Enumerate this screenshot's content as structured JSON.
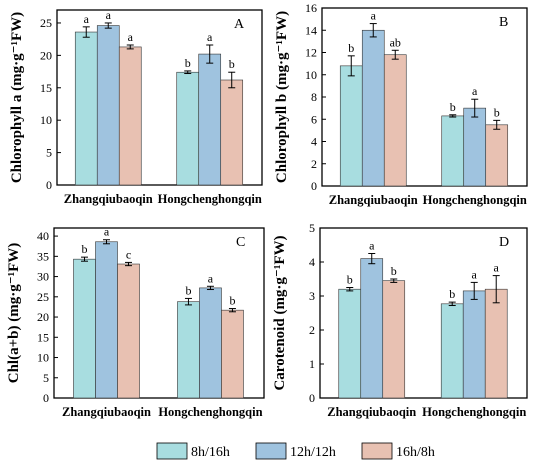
{
  "colors": {
    "series": [
      "#A8DDE0",
      "#9FC3DF",
      "#E8C1B2"
    ],
    "axis": "#000000",
    "errorbar": "#000000"
  },
  "legend": [
    "8h/16h",
    "12h/12h",
    "16h/8h"
  ],
  "chart_data": [
    {
      "type": "bar",
      "panel_label": "A",
      "ylabel": "Chlorophyll a (mg·g⁻¹FW)",
      "categories": [
        "Zhangqiubaoqin",
        "Hongchenghongqin"
      ],
      "yticks": [
        0,
        5,
        10,
        15,
        20,
        25
      ],
      "ylim": [
        0,
        27
      ],
      "series": [
        {
          "name": "8h/16h",
          "values": [
            23.6,
            17.4
          ],
          "errors": [
            0.8,
            0.2
          ],
          "letters": [
            "a",
            "b"
          ]
        },
        {
          "name": "12h/12h",
          "values": [
            24.6,
            20.2
          ],
          "errors": [
            0.4,
            1.4
          ],
          "letters": [
            "a",
            "a"
          ]
        },
        {
          "name": "16h/8h",
          "values": [
            21.3,
            16.2
          ],
          "errors": [
            0.3,
            1.2
          ],
          "letters": [
            "a",
            "b"
          ]
        }
      ]
    },
    {
      "type": "bar",
      "panel_label": "B",
      "ylabel": "Chlorophyll b (mg·g⁻¹FW)",
      "categories": [
        "Zhangqiubaoqin",
        "Hongchenghongqin"
      ],
      "yticks": [
        0,
        2,
        4,
        6,
        8,
        10,
        12,
        14,
        16
      ],
      "ylim": [
        0,
        16
      ],
      "series": [
        {
          "name": "8h/16h",
          "values": [
            10.8,
            6.3
          ],
          "errors": [
            0.9,
            0.1
          ],
          "letters": [
            "b",
            "b"
          ]
        },
        {
          "name": "12h/12h",
          "values": [
            14.0,
            7.0
          ],
          "errors": [
            0.6,
            0.8
          ],
          "letters": [
            "a",
            "a"
          ]
        },
        {
          "name": "16h/8h",
          "values": [
            11.8,
            5.5
          ],
          "errors": [
            0.4,
            0.4
          ],
          "letters": [
            "ab",
            "b"
          ]
        }
      ]
    },
    {
      "type": "bar",
      "panel_label": "C",
      "ylabel": "Chl(a+b) (mg·g⁻¹FW)",
      "categories": [
        "Zhangqiubaoqin",
        "Hongchenghongqin"
      ],
      "yticks": [
        0,
        5,
        10,
        15,
        20,
        25,
        30,
        35,
        40
      ],
      "ylim": [
        0,
        42
      ],
      "series": [
        {
          "name": "8h/16h",
          "values": [
            34.3,
            23.8
          ],
          "errors": [
            0.5,
            0.8
          ],
          "letters": [
            "b",
            "b"
          ]
        },
        {
          "name": "12h/12h",
          "values": [
            38.6,
            27.2
          ],
          "errors": [
            0.5,
            0.4
          ],
          "letters": [
            "a",
            "a"
          ]
        },
        {
          "name": "16h/8h",
          "values": [
            33.1,
            21.7
          ],
          "errors": [
            0.4,
            0.4
          ],
          "letters": [
            "c",
            "b"
          ]
        }
      ]
    },
    {
      "type": "bar",
      "panel_label": "D",
      "ylabel": "Carotenoid (mg·g⁻¹FW)",
      "categories": [
        "Zhangqiubaoqin",
        "Hongchenghongqin"
      ],
      "yticks": [
        0,
        1,
        2,
        3,
        4,
        5
      ],
      "ylim": [
        0,
        5
      ],
      "series": [
        {
          "name": "8h/16h",
          "values": [
            3.2,
            2.77
          ],
          "errors": [
            0.05,
            0.05
          ],
          "letters": [
            "b",
            "b"
          ]
        },
        {
          "name": "12h/12h",
          "values": [
            4.1,
            3.15
          ],
          "errors": [
            0.15,
            0.25
          ],
          "letters": [
            "a",
            "a"
          ]
        },
        {
          "name": "16h/8h",
          "values": [
            3.45,
            3.2
          ],
          "errors": [
            0.05,
            0.4
          ],
          "letters": [
            "b",
            "a"
          ]
        }
      ]
    }
  ]
}
